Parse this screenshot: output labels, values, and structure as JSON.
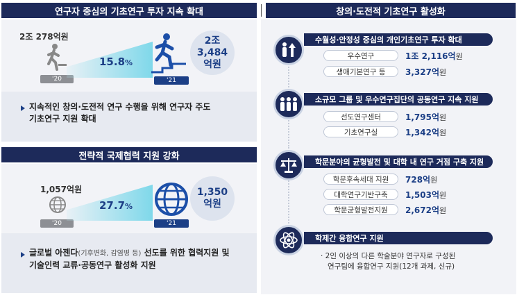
{
  "left_top": {
    "header": "연구자 중심의 기초연구 투자 지속 확대",
    "amount_2020": "2조 278억원",
    "year_2020": "'20",
    "growth": "15.8",
    "growth_unit": "%",
    "year_2021": "'21",
    "amount_2021_line1": "2조",
    "amount_2021_line2": "3,484",
    "amount_2021_line3": "억원",
    "icon_2020": "walking-person-icon",
    "icon_2021": "running-person-icon",
    "bullet_line1": "지속적인 창의·도전적 연구 수행을 위해 연구자 주도",
    "bullet_line2": "기초연구 지원 확대"
  },
  "left_bottom": {
    "header": "전략적 국제협력 지원 강화",
    "amount_2020": "1,057억원",
    "year_2020": "'20",
    "growth": "27.7",
    "growth_unit": "%",
    "year_2021": "'21",
    "amount_2021_line1": "1,350",
    "amount_2021_line2": "억원",
    "icon_2020": "globe-icon",
    "icon_2021": "globe-icon",
    "bullet_line1_a": "글로벌 아젠다",
    "bullet_line1_small": "(기후변화, 감염병 등)",
    "bullet_line1_b": "선도를 위한 협력지원 및",
    "bullet_line2": "기술인력 교류·공동연구 활성화 지원"
  },
  "right": {
    "header": "창의·도전적 기초연구 활성화",
    "sections": [
      {
        "icon": "people-growth-icon",
        "title": "수월성·안정성 중심의 개인기초연구 투자 확대",
        "items": [
          {
            "label": "우수연구",
            "value": "1조 2,116억",
            "unit": "원"
          },
          {
            "label": "생애기본연구 등",
            "value": "3,327억",
            "unit": "원"
          }
        ]
      },
      {
        "icon": "group-icon",
        "title": "소규모 그룹 및 우수연구집단의 공동연구 지속 지원",
        "items": [
          {
            "label": "선도연구센터",
            "value": "1,795억",
            "unit": "원"
          },
          {
            "label": "기초연구실",
            "value": "1,342억",
            "unit": "원"
          }
        ]
      },
      {
        "icon": "balance-scale-icon",
        "title": "학문분야의 균형발전 및 대학 내 연구 거점 구축 지원",
        "items": [
          {
            "label": "학문후속세대 지원",
            "value": "728억",
            "unit": "원"
          },
          {
            "label": "대학연구기반구축",
            "value": "1,503억",
            "unit": "원"
          },
          {
            "label": "학문균형발전지원",
            "value": "2,672억",
            "unit": "원"
          }
        ]
      },
      {
        "icon": "atom-icon",
        "title": "학제간 융합연구 지원",
        "note_line1": "· 2인 이상의 다른 학술분야 연구자로 구성된",
        "note_line2": "연구팀에 융합연구 지원(12개 과제, 신규)"
      }
    ]
  },
  "colors": {
    "navy": "#1d2a5a",
    "accent_blue": "#1c3f86",
    "wedge_cyan": "#7fd8ea",
    "panel_bg": "#f2f3f7"
  }
}
